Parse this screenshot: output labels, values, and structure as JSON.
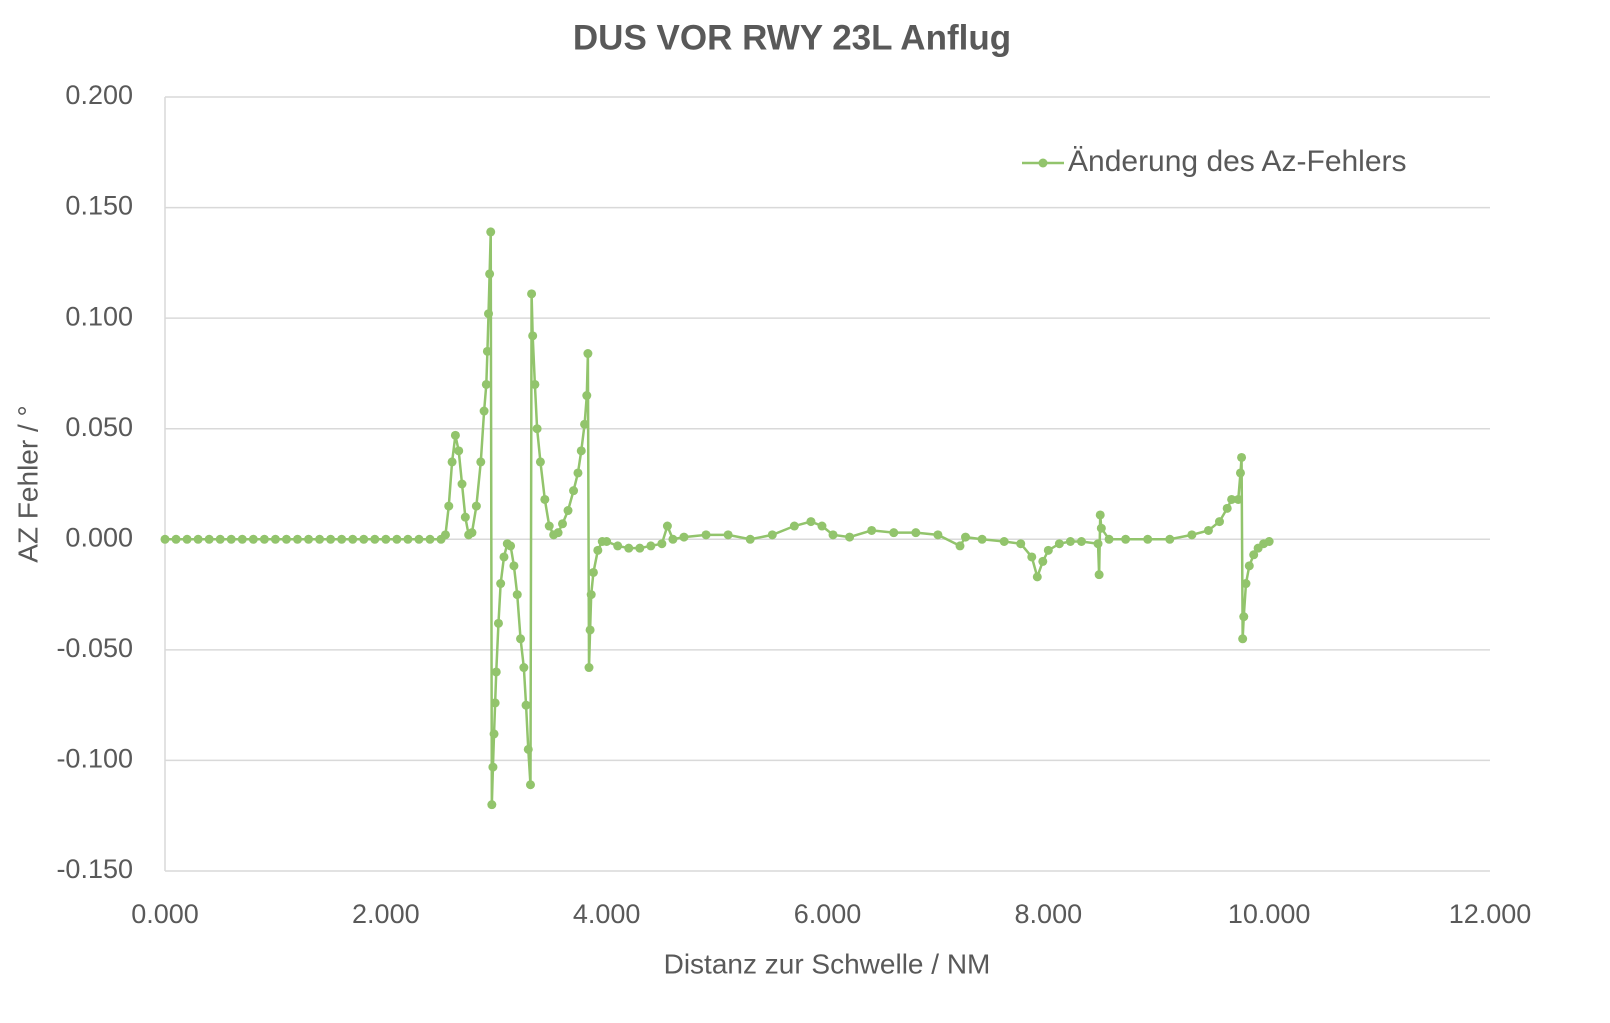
{
  "chart_data": {
    "type": "line",
    "title": "DUS VOR RWY 23L Anflug",
    "x_label": "Distanz zur Schwelle / NM",
    "y_label": "AZ Fehler / °",
    "xlim": [
      0,
      12
    ],
    "ylim": [
      -0.15,
      0.2
    ],
    "xticks": [
      {
        "value": 0,
        "label": "0.000"
      },
      {
        "value": 2,
        "label": "2.000"
      },
      {
        "value": 4,
        "label": "4.000"
      },
      {
        "value": 6,
        "label": "6.000"
      },
      {
        "value": 8,
        "label": "8.000"
      },
      {
        "value": 10,
        "label": "10.000"
      },
      {
        "value": 12,
        "label": "12.000"
      }
    ],
    "yticks": [
      {
        "value": -0.15,
        "label": "-0.150"
      },
      {
        "value": -0.1,
        "label": "-0.100"
      },
      {
        "value": -0.05,
        "label": "-0.050"
      },
      {
        "value": 0,
        "label": "0.000"
      },
      {
        "value": 0.05,
        "label": "0.050"
      },
      {
        "value": 0.1,
        "label": "0.100"
      },
      {
        "value": 0.15,
        "label": "0.150"
      },
      {
        "value": 0.2,
        "label": "0.200"
      }
    ],
    "grid": true,
    "legend": "upper right",
    "x": [
      0,
      0.1,
      0.2,
      0.3,
      0.4,
      0.5,
      0.6,
      0.7,
      0.8,
      0.9,
      1.0,
      1.1,
      1.2,
      1.3,
      1.4,
      1.5,
      1.6,
      1.7,
      1.8,
      1.9,
      2.0,
      2.1,
      2.2,
      2.3,
      2.4,
      2.5,
      2.54,
      2.57,
      2.6,
      2.63,
      2.66,
      2.69,
      2.72,
      2.75,
      2.78,
      2.82,
      2.86,
      2.89,
      2.91,
      2.92,
      2.93,
      2.94,
      2.95,
      2.96,
      2.97,
      2.98,
      2.99,
      3.0,
      3.02,
      3.04,
      3.07,
      3.1,
      3.13,
      3.16,
      3.19,
      3.22,
      3.25,
      3.27,
      3.29,
      3.31,
      3.32,
      3.33,
      3.35,
      3.37,
      3.4,
      3.44,
      3.48,
      3.52,
      3.56,
      3.6,
      3.65,
      3.7,
      3.74,
      3.77,
      3.8,
      3.82,
      3.83,
      3.84,
      3.85,
      3.86,
      3.88,
      3.92,
      3.96,
      4.0,
      4.1,
      4.2,
      4.3,
      4.4,
      4.5,
      4.55,
      4.6,
      4.7,
      4.9,
      5.1,
      5.3,
      5.5,
      5.7,
      5.85,
      5.95,
      6.05,
      6.2,
      6.4,
      6.6,
      6.8,
      7.0,
      7.2,
      7.25,
      7.4,
      7.6,
      7.75,
      7.85,
      7.9,
      7.95,
      8.0,
      8.1,
      8.2,
      8.3,
      8.45,
      8.46,
      8.47,
      8.48,
      8.55,
      8.7,
      8.9,
      9.1,
      9.3,
      9.45,
      9.55,
      9.62,
      9.66,
      9.72,
      9.74,
      9.75,
      9.76,
      9.77,
      9.79,
      9.82,
      9.86,
      9.9,
      9.95,
      10.0
    ],
    "series": [
      {
        "name": "Änderung des Az-Fehlers",
        "color": "#92c46c",
        "values": [
          0,
          0,
          0,
          0,
          0,
          0,
          0,
          0,
          0,
          0,
          0,
          0,
          0,
          0,
          0,
          0,
          0,
          0,
          0,
          0,
          0,
          0,
          0,
          0,
          0,
          0,
          0.002,
          0.015,
          0.035,
          0.047,
          0.04,
          0.025,
          0.01,
          0.002,
          0.003,
          0.015,
          0.035,
          0.058,
          0.07,
          0.085,
          0.102,
          0.12,
          0.139,
          -0.12,
          -0.103,
          -0.088,
          -0.074,
          -0.06,
          -0.038,
          -0.02,
          -0.008,
          -0.002,
          -0.003,
          -0.012,
          -0.025,
          -0.045,
          -0.058,
          -0.075,
          -0.095,
          -0.111,
          0.111,
          0.092,
          0.07,
          0.05,
          0.035,
          0.018,
          0.006,
          0.002,
          0.003,
          0.007,
          0.013,
          0.022,
          0.03,
          0.04,
          0.052,
          0.065,
          0.084,
          -0.058,
          -0.041,
          -0.025,
          -0.015,
          -0.005,
          -0.001,
          -0.001,
          -0.003,
          -0.004,
          -0.004,
          -0.003,
          -0.002,
          0.006,
          0,
          0.001,
          0.002,
          0.002,
          0,
          0.002,
          0.006,
          0.008,
          0.006,
          0.002,
          0.001,
          0.004,
          0.003,
          0.003,
          0.002,
          -0.003,
          0.001,
          0,
          -0.001,
          -0.002,
          -0.008,
          -0.017,
          -0.01,
          -0.005,
          -0.002,
          -0.001,
          -0.001,
          -0.002,
          -0.016,
          0.011,
          0.005,
          0,
          0,
          0,
          0,
          0.002,
          0.004,
          0.008,
          0.014,
          0.018,
          0.018,
          0.03,
          0.037,
          -0.045,
          -0.035,
          -0.02,
          -0.012,
          -0.007,
          -0.004,
          -0.002,
          -0.001
        ]
      }
    ]
  }
}
